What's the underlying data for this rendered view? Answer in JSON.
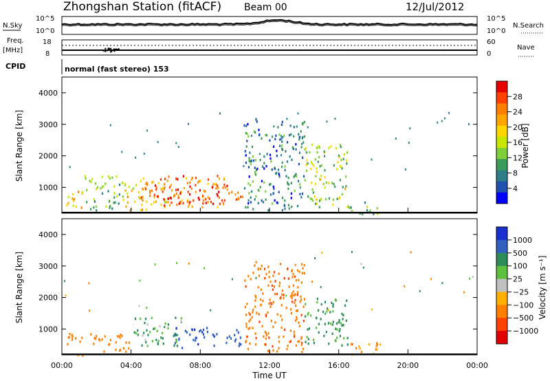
{
  "header": {
    "station": "Zhongshan Station (fitACF)",
    "beam": "Beam 00",
    "date": "12/Jul/2012",
    "mode": "normal (fast stereo) 153"
  },
  "labels": {
    "nsky": "N.Sky",
    "nsearch": "N.Search",
    "freq": "Freq.",
    "mhz": "[MHz]",
    "nave": "Nave",
    "cpid": "CPID"
  },
  "axes": {
    "noise_ticks": [
      "10^5",
      "10^0"
    ],
    "noise_ticks_right": [
      "10^5",
      "10^0"
    ],
    "freq_ticks": [
      "18",
      "8"
    ],
    "nave_ticks": [
      "60",
      "0"
    ],
    "y_label": "Slant Range [km]",
    "y_ticks": [
      "4000",
      "3000",
      "2000",
      "1000"
    ],
    "x_ticks": [
      "00:00",
      "04:00",
      "08:00",
      "12:00",
      "16:00",
      "20:00",
      "00:00"
    ],
    "x_label": "Time UT"
  },
  "colorbars": {
    "power": {
      "label": "Power [dB]",
      "ticks": [
        "28",
        "24",
        "20",
        "16",
        "12",
        "8",
        "4"
      ],
      "colors": [
        "#e60000",
        "#ff4000",
        "#ff7f00",
        "#ffa500",
        "#ffd700",
        "#c8e600",
        "#7ecf3a",
        "#3c9a5a",
        "#2e7d88",
        "#2050b0",
        "#0000ff"
      ]
    },
    "velocity": {
      "label": "Velocity [m s⁻¹]",
      "ticks": [
        "1000",
        "500",
        "100",
        "25",
        "−25",
        "−100",
        "−500",
        "−1000"
      ],
      "colors": [
        "#1a2fd0",
        "#3060c0",
        "#2e8b57",
        "#5fbf3f",
        "#c0c0c0",
        "#ffb000",
        "#ff8000",
        "#ff4000",
        "#e00000"
      ]
    }
  },
  "chart_data": {
    "type": "heatmap",
    "x_range_hours": [
      0,
      24
    ],
    "y_range_km": [
      180,
      4500
    ],
    "panels": [
      "Power [dB]",
      "Velocity [m s⁻¹]"
    ],
    "power_clusters": [
      {
        "t0": 0.2,
        "t1": 1.2,
        "r0": 180,
        "r1": 900,
        "dB": 20
      },
      {
        "t0": 1.2,
        "t1": 3.5,
        "r0": 300,
        "r1": 1400,
        "dB": 12
      },
      {
        "t0": 3.5,
        "t1": 6.0,
        "r0": 300,
        "r1": 1200,
        "dB": 18
      },
      {
        "t0": 4.5,
        "t1": 9.5,
        "r0": 400,
        "r1": 1400,
        "dB": 24
      },
      {
        "t0": 6.0,
        "t1": 10.5,
        "r0": 500,
        "r1": 1100,
        "dB": 26
      },
      {
        "t0": 10.5,
        "t1": 14.0,
        "r0": 300,
        "r1": 3200,
        "dB": 6
      },
      {
        "t0": 14.0,
        "t1": 16.5,
        "r0": 400,
        "r1": 2400,
        "dB": 14
      },
      {
        "t0": 16.5,
        "t1": 18.5,
        "r0": 180,
        "r1": 600,
        "dB": 10
      }
    ],
    "velocity_clusters": [
      {
        "t0": 0.2,
        "t1": 1.2,
        "r0": 180,
        "r1": 900,
        "v": -300
      },
      {
        "t0": 1.5,
        "t1": 4.0,
        "r0": 300,
        "r1": 900,
        "v": -300
      },
      {
        "t0": 4.0,
        "t1": 7.0,
        "r0": 500,
        "r1": 1400,
        "v": 150
      },
      {
        "t0": 6.5,
        "t1": 8.5,
        "r0": 400,
        "r1": 1100,
        "v": 900
      },
      {
        "t0": 8.5,
        "t1": 10.5,
        "r0": 500,
        "r1": 1000,
        "v": 700
      },
      {
        "t0": 10.5,
        "t1": 14.0,
        "r0": 300,
        "r1": 3200,
        "v": -400
      },
      {
        "t0": 14.0,
        "t1": 16.5,
        "r0": 500,
        "r1": 2000,
        "v": 200
      },
      {
        "t0": 16.5,
        "t1": 18.5,
        "r0": 180,
        "r1": 600,
        "v": -200
      }
    ]
  }
}
